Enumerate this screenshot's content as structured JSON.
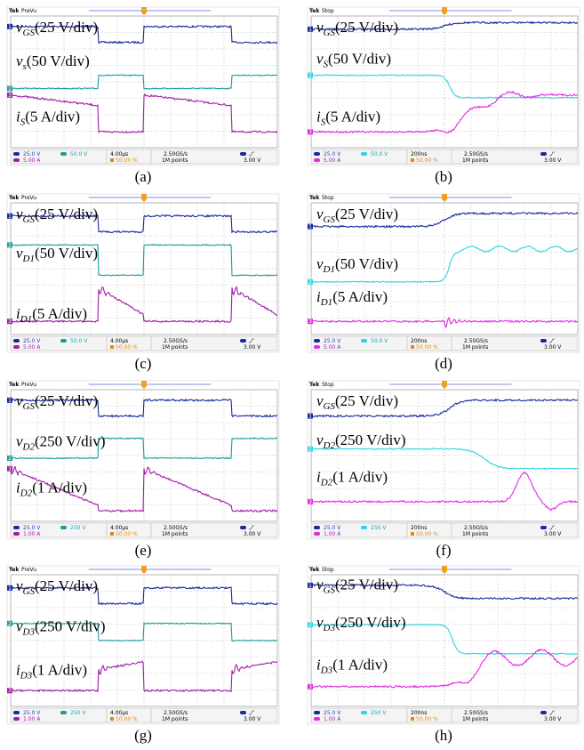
{
  "channel_markers": [
    "1",
    "2",
    "3"
  ],
  "panels": [
    {
      "caption": "(a)",
      "tek": "Tek",
      "status": "PreVu",
      "labels": [
        {
          "symbol": "v",
          "sub": "GS",
          "scale": "(25 V/div)"
        },
        {
          "symbol": "v",
          "sub": "s",
          "scale": "(50 V/div)"
        },
        {
          "symbol": "i",
          "sub": "S",
          "scale": "(5 A/div)"
        }
      ],
      "readout": {
        "ch1": "25.0 V",
        "ch2": "50.0 V",
        "ch3": "5.00 A",
        "time": "4.00µs",
        "position": "50.00 %",
        "rate": "2.50GS/s",
        "points": "1M points",
        "level": "3.00 V"
      }
    },
    {
      "caption": "(b)",
      "tek": "Tek",
      "status": "Stop",
      "labels": [
        {
          "symbol": "v",
          "sub": "GS",
          "scale": "(25 V/div)"
        },
        {
          "symbol": "v",
          "sub": "S",
          "scale": "(50 V/div)"
        },
        {
          "symbol": "i",
          "sub": "S",
          "scale": "(5 A/div)"
        }
      ],
      "readout": {
        "ch1": "25.0 V",
        "ch2": "50.0 V",
        "ch3": "5.00 A",
        "time": "200ns",
        "position": "50.00 %",
        "rate": "2.50GS/s",
        "points": "1M points",
        "level": "3.00 V"
      }
    },
    {
      "caption": "(c)",
      "tek": "Tek",
      "status": "PreVu",
      "labels": [
        {
          "symbol": "v",
          "sub": "GS",
          "scale": "(25 V/div)"
        },
        {
          "symbol": "v",
          "sub": "D1",
          "scale": "(50 V/div)"
        },
        {
          "symbol": "i",
          "sub": "D1",
          "scale": "(5 A/div)"
        }
      ],
      "readout": {
        "ch1": "25.0 V",
        "ch2": "50.0 V",
        "ch3": "5.00 A",
        "time": "4.00µs",
        "position": "50.00 %",
        "rate": "2.50GS/s",
        "points": "1M points",
        "level": "3.00 V"
      }
    },
    {
      "caption": "(d)",
      "tek": "Tek",
      "status": "Stop",
      "labels": [
        {
          "symbol": "v",
          "sub": "GS",
          "scale": "(25 V/div)"
        },
        {
          "symbol": "v",
          "sub": "D1",
          "scale": "(50 V/div)"
        },
        {
          "symbol": "i",
          "sub": "D1",
          "scale": "(5 A/div)"
        }
      ],
      "readout": {
        "ch1": "25.0 V",
        "ch2": "50.0 V",
        "ch3": "5.00 A",
        "time": "200ns",
        "position": "50.00 %",
        "rate": "2.50GS/s",
        "points": "1M points",
        "level": "3.00 V"
      }
    },
    {
      "caption": "(e)",
      "tek": "Tek",
      "status": "PreVu",
      "labels": [
        {
          "symbol": "v",
          "sub": "GS",
          "scale": "(25 V/div)"
        },
        {
          "symbol": "v",
          "sub": "D2",
          "scale": "(250 V/div)"
        },
        {
          "symbol": "i",
          "sub": "D2",
          "scale": "(1 A/div)"
        }
      ],
      "readout": {
        "ch1": "25.0 V",
        "ch2": "250 V",
        "ch3": "1.00 A",
        "time": "4.00µs",
        "position": "50.00 %",
        "rate": "2.50GS/s",
        "points": "1M points",
        "level": "3.00 V"
      }
    },
    {
      "caption": "(f)",
      "tek": "Tek",
      "status": "Stop",
      "labels": [
        {
          "symbol": "v",
          "sub": "GS",
          "scale": "(25 V/div)"
        },
        {
          "symbol": "v",
          "sub": "D2",
          "scale": "(250 V/div)"
        },
        {
          "symbol": "i",
          "sub": "D2",
          "scale": "(1 A/div)"
        }
      ],
      "readout": {
        "ch1": "25.0 V",
        "ch2": "250 V",
        "ch3": "1.00 A",
        "time": "200ns",
        "position": "50.00 %",
        "rate": "2.50GS/s",
        "points": "1M points",
        "level": "3.00 V"
      }
    },
    {
      "caption": "(g)",
      "tek": "Tek",
      "status": "PreVu",
      "labels": [
        {
          "symbol": "v",
          "sub": "GS",
          "scale": "(25 V/div)"
        },
        {
          "symbol": "v",
          "sub": "D3",
          "scale": "(250 V/div)"
        },
        {
          "symbol": "i",
          "sub": "D3",
          "scale": "(1 A/div)"
        }
      ],
      "readout": {
        "ch1": "25.0 V",
        "ch2": "250 V",
        "ch3": "1.00 A",
        "time": "4.00µs",
        "position": "50.00 %",
        "rate": "2.50GS/s",
        "points": "1M points",
        "level": "3.00 V"
      }
    },
    {
      "caption": "(h)",
      "tek": "Tek",
      "status": "Stop",
      "labels": [
        {
          "symbol": "v",
          "sub": "GS",
          "scale": "(25 V/div)"
        },
        {
          "symbol": "v",
          "sub": "D3",
          "scale": "(250 V/div)"
        },
        {
          "symbol": "i",
          "sub": "D3",
          "scale": "(1 A/div)"
        }
      ],
      "readout": {
        "ch1": "25.0 V",
        "ch2": "250 V",
        "ch3": "1.00 A",
        "time": "200ns",
        "position": "50.00 %",
        "rate": "2.50GS/s",
        "points": "1M points",
        "level": "3.00 V"
      }
    }
  ]
}
